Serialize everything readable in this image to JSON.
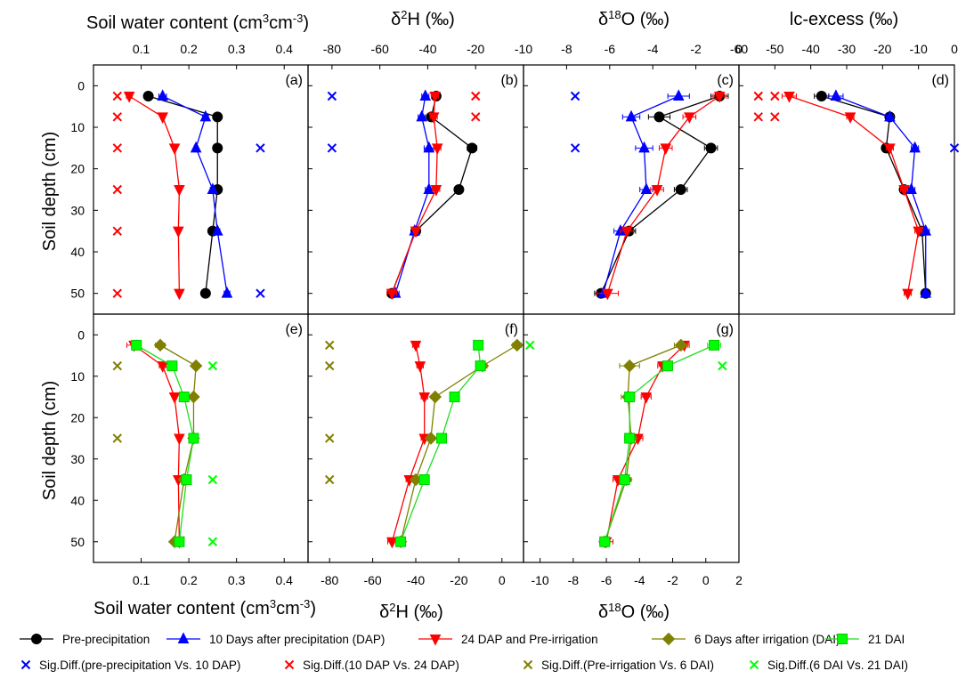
{
  "legend": [
    {
      "label": "Pre-precipitation",
      "color": "#000000",
      "marker": "circle"
    },
    {
      "label": "10 Days after precipitation (DAP)",
      "color": "#0000ff",
      "marker": "triangle-up"
    },
    {
      "label": "24 DAP and Pre-irrigation",
      "color": "#ff0000",
      "marker": "triangle-down"
    },
    {
      "label": "6 Days after irrigation (DAI)",
      "color": "#808000",
      "marker": "diamond"
    },
    {
      "label": "21 DAI",
      "color": "#00ff00",
      "marker": "square"
    }
  ],
  "sig_legend": [
    {
      "label": "Sig.Diff.(pre-precipitation Vs. 10 DAP)",
      "color": "#0000ff"
    },
    {
      "label": "Sig.Diff.(10 DAP Vs. 24 DAP)",
      "color": "#ff0000"
    },
    {
      "label": "Sig.Diff.(Pre-irrigation Vs. 6 DAI)",
      "color": "#808000"
    },
    {
      "label": "Sig.Diff.(6 DAI Vs. 21 DAI)",
      "color": "#00ff00"
    }
  ],
  "chart_data": [
    {
      "type": "line",
      "panel_label": "(a)",
      "xlabel": "Soil water content (cm3cm-3)",
      "ylabel": "Soil depth (cm)",
      "xlim": [
        0,
        0.45
      ],
      "ylim": [
        -5,
        55
      ],
      "xticks": [
        0.1,
        0.2,
        0.3,
        0.4
      ],
      "xtick_labels": [
        "0.1",
        "0.2",
        "0.3",
        "0.4"
      ],
      "yticks": [
        0,
        10,
        20,
        30,
        40,
        50
      ],
      "ytick_labels": [
        "0",
        "10",
        "20",
        "30",
        "40",
        "50"
      ],
      "series": [
        {
          "legend": 0,
          "x": [
            0.115,
            0.26,
            0.26,
            0.26,
            0.25,
            0.235
          ],
          "y": [
            2.5,
            7.5,
            15,
            25,
            35,
            50
          ],
          "err": [
            0.005,
            0.004,
            0.003,
            0.004,
            0.005,
            0.005
          ]
        },
        {
          "legend": 1,
          "x": [
            0.145,
            0.235,
            0.215,
            0.25,
            0.26,
            0.28
          ],
          "y": [
            2.5,
            7.5,
            15,
            25,
            35,
            50
          ],
          "err": [
            0.008,
            0.006,
            0.004,
            0.005,
            0.005,
            0.006
          ]
        },
        {
          "legend": 2,
          "x": [
            0.075,
            0.145,
            0.17,
            0.18,
            0.178,
            0.18
          ],
          "y": [
            2.5,
            7.5,
            15,
            25,
            35,
            50
          ],
          "err": [
            0.006,
            0.004,
            0.003,
            0.003,
            0.003,
            0.003
          ]
        }
      ],
      "sig": [
        {
          "legend": 0,
          "x": [
            0.35,
            0.35
          ],
          "y": [
            15,
            50
          ]
        },
        {
          "legend": 1,
          "x": [
            0.05,
            0.05,
            0.05,
            0.05,
            0.05,
            0.05
          ],
          "y": [
            2.5,
            7.5,
            15,
            25,
            35,
            50
          ]
        }
      ]
    },
    {
      "type": "line",
      "panel_label": "(b)",
      "xlabel": "δ2H (‰)",
      "xlim": [
        -90,
        0
      ],
      "xticks": [
        -80,
        -60,
        -40,
        -20
      ],
      "xtick_labels": [
        "-80",
        "-60",
        "-40",
        "-20"
      ],
      "yticks": [
        0,
        10,
        20,
        30,
        40,
        50
      ],
      "ylim": [
        -5,
        55
      ],
      "series": [
        {
          "legend": 0,
          "x": [
            -36.5,
            -38.5,
            -21.5,
            -27,
            -45,
            -55
          ],
          "y": [
            2.5,
            7.5,
            15,
            25,
            35,
            50
          ],
          "err": [
            1.5,
            1.5,
            2,
            1.5,
            1,
            1.5
          ]
        },
        {
          "legend": 1,
          "x": [
            -41,
            -42.5,
            -39.5,
            -39.5,
            -45.5,
            -53.5
          ],
          "y": [
            2.5,
            7.5,
            15,
            25,
            35,
            50
          ],
          "err": [
            1.5,
            1.5,
            2,
            1.5,
            1,
            1.5
          ]
        },
        {
          "legend": 2,
          "x": [
            -37,
            -37.5,
            -36,
            -36.5,
            -45,
            -55
          ],
          "y": [
            2.5,
            7.5,
            15,
            25,
            35,
            50
          ],
          "err": [
            1.5,
            1.5,
            1.5,
            1.5,
            1,
            2
          ]
        }
      ],
      "sig": [
        {
          "legend": 0,
          "x": [
            -80,
            -80
          ],
          "y": [
            2.5,
            15
          ]
        },
        {
          "legend": 1,
          "x": [
            -20,
            -20
          ],
          "y": [
            2.5,
            7.5
          ]
        }
      ]
    },
    {
      "type": "line",
      "panel_label": "(c)",
      "xlabel": "δ18O (‰)",
      "xlim": [
        -10,
        0
      ],
      "xticks": [
        -10,
        -8,
        -6,
        -4,
        -2,
        0
      ],
      "xtick_labels": [
        "-10",
        "-8",
        "-6",
        "-4",
        "-2",
        "0"
      ],
      "yticks": [
        0,
        10,
        20,
        30,
        40,
        50
      ],
      "ylim": [
        -5,
        55
      ],
      "series": [
        {
          "legend": 0,
          "x": [
            -0.9,
            -3.7,
            -1.3,
            -2.7,
            -5.1,
            -6.4
          ],
          "y": [
            2.5,
            7.5,
            15,
            25,
            35,
            50
          ],
          "err": [
            0.4,
            0.5,
            0.3,
            0.3,
            0.3,
            0.3
          ]
        },
        {
          "legend": 1,
          "x": [
            -2.8,
            -5.0,
            -4.4,
            -4.3,
            -5.5,
            -6.3
          ],
          "y": [
            2.5,
            7.5,
            15,
            25,
            35,
            50
          ],
          "err": [
            0.5,
            0.4,
            0.4,
            0.3,
            0.3,
            0.3
          ]
        },
        {
          "legend": 2,
          "x": [
            -0.9,
            -2.3,
            -3.4,
            -3.8,
            -5.2,
            -6.1
          ],
          "y": [
            2.5,
            7.5,
            15,
            25,
            35,
            50
          ],
          "err": [
            0.3,
            0.3,
            0.3,
            0.3,
            0.3,
            0.5
          ]
        }
      ],
      "sig": [
        {
          "legend": 0,
          "x": [
            -7.6,
            -7.6
          ],
          "y": [
            2.5,
            15
          ]
        },
        {
          "legend": 1,
          "x": [
            0.9,
            0.9
          ],
          "y": [
            2.5,
            7.5
          ]
        }
      ]
    },
    {
      "type": "line",
      "panel_label": "(d)",
      "xlabel": "lc-excess (‰)",
      "xlim": [
        -60,
        0
      ],
      "xticks": [
        -60,
        -50,
        -40,
        -30,
        -20,
        -10,
        0
      ],
      "xtick_labels": [
        "-60",
        "-50",
        "-40",
        "-30",
        "-20",
        "-10",
        "0"
      ],
      "yticks": [
        0,
        10,
        20,
        30,
        40,
        50
      ],
      "ylim": [
        -5,
        55
      ],
      "series": [
        {
          "legend": 0,
          "x": [
            -37,
            -18,
            -19,
            -14,
            -9,
            -8
          ],
          "y": [
            2.5,
            7.5,
            15,
            25,
            35,
            50
          ],
          "err": [
            2,
            1,
            1,
            1,
            1,
            1
          ]
        },
        {
          "legend": 1,
          "x": [
            -33,
            -18,
            -11,
            -12,
            -8,
            -8
          ],
          "y": [
            2.5,
            7.5,
            15,
            25,
            35,
            50
          ],
          "err": [
            2,
            1,
            1,
            1,
            1,
            1
          ]
        },
        {
          "legend": 2,
          "x": [
            -46,
            -29,
            -18,
            -14,
            -10,
            -13
          ],
          "y": [
            2.5,
            7.5,
            15,
            25,
            35,
            50
          ],
          "err": [
            2,
            1,
            1,
            1,
            1,
            1
          ]
        }
      ],
      "sig": [
        {
          "legend": 0,
          "x": [
            0
          ],
          "y": [
            15
          ]
        },
        {
          "legend": 1,
          "x": [
            -50,
            -50
          ],
          "y": [
            2.5,
            7.5
          ]
        }
      ]
    },
    {
      "type": "line",
      "panel_label": "(e)",
      "xlabel": "Soil water content (cm3cm-3)",
      "ylabel": "Soil depth (cm)",
      "xlim": [
        0,
        0.45
      ],
      "ylim": [
        -5,
        55
      ],
      "xticks": [
        0.1,
        0.2,
        0.3,
        0.4
      ],
      "xtick_labels": [
        "0.1",
        "0.2",
        "0.3",
        "0.4"
      ],
      "yticks": [
        0,
        10,
        20,
        30,
        40,
        50
      ],
      "ytick_labels": [
        "0",
        "10",
        "20",
        "30",
        "40",
        "50"
      ],
      "series": [
        {
          "legend": 2,
          "x": [
            0.085,
            0.145,
            0.17,
            0.18,
            0.178,
            0.18
          ],
          "y": [
            2.5,
            7.5,
            15,
            25,
            35,
            50
          ],
          "err": [
            0.015,
            0.007,
            0.004,
            0.004,
            0.004,
            0.004
          ]
        },
        {
          "legend": 3,
          "x": [
            0.14,
            0.215,
            0.21,
            0.21,
            0.19,
            0.17
          ],
          "y": [
            2.5,
            7.5,
            15,
            25,
            35,
            50
          ],
          "err": [
            0.01,
            0.007,
            0.007,
            0.005,
            0.005,
            0.005
          ]
        },
        {
          "legend": 4,
          "x": [
            0.09,
            0.165,
            0.19,
            0.21,
            0.195,
            0.18
          ],
          "y": [
            2.5,
            7.5,
            15,
            25,
            35,
            50
          ],
          "err": [
            0.01,
            0.005,
            0.005,
            0.005,
            0.005,
            0.005
          ]
        }
      ],
      "sig": [
        {
          "legend": 2,
          "x": [
            0.05,
            0.05
          ],
          "y": [
            7.5,
            25
          ]
        },
        {
          "legend": 3,
          "x": [
            0.25,
            0.25,
            0.25
          ],
          "y": [
            7.5,
            35,
            50
          ]
        }
      ]
    },
    {
      "type": "line",
      "panel_label": "(f)",
      "xlabel": "δ2H (‰)",
      "xlim": [
        -90,
        10
      ],
      "xticks": [
        -80,
        -60,
        -40,
        -20,
        0
      ],
      "xtick_labels": [
        "-80",
        "-60",
        "-40",
        "-20",
        "0"
      ],
      "yticks": [
        0,
        10,
        20,
        30,
        40,
        50
      ],
      "ylim": [
        -5,
        55
      ],
      "series": [
        {
          "legend": 2,
          "x": [
            -40,
            -38,
            -36,
            -36,
            -43,
            -51
          ],
          "y": [
            2.5,
            7.5,
            15,
            25,
            35,
            50
          ],
          "err": [
            1.5,
            1.5,
            1.5,
            1.5,
            1.5,
            2
          ]
        },
        {
          "legend": 3,
          "x": [
            7,
            -9,
            -31,
            -33,
            -40,
            -47
          ],
          "y": [
            2.5,
            7.5,
            15,
            25,
            35,
            50
          ],
          "err": [
            2,
            2,
            1.5,
            1.5,
            1.5,
            1.5
          ]
        },
        {
          "legend": 4,
          "x": [
            -11,
            -10,
            -22,
            -28,
            -36,
            -47
          ],
          "y": [
            2.5,
            7.5,
            15,
            25,
            35,
            50
          ],
          "err": [
            1.5,
            1.5,
            1.5,
            1.5,
            1.5,
            1.5
          ]
        }
      ],
      "sig": [
        {
          "legend": 2,
          "x": [
            -80,
            -80,
            -80,
            -80
          ],
          "y": [
            2.5,
            7.5,
            25,
            35
          ]
        },
        {
          "legend": 3,
          "x": [
            13
          ],
          "y": [
            2.5
          ]
        }
      ]
    },
    {
      "type": "line",
      "panel_label": "(g)",
      "xlabel": "δ18O (‰)",
      "xlim": [
        -11,
        2
      ],
      "xticks": [
        -10,
        -8,
        -6,
        -4,
        -2,
        0,
        2
      ],
      "xtick_labels": [
        "-10",
        "-8",
        "-6",
        "-4",
        "-2",
        "0",
        "2"
      ],
      "yticks": [
        0,
        10,
        20,
        30,
        40,
        50
      ],
      "ylim": [
        -5,
        55
      ],
      "series": [
        {
          "legend": 2,
          "x": [
            -1.3,
            -2.6,
            -3.6,
            -4.1,
            -5.3,
            -6.0
          ],
          "y": [
            2.5,
            7.5,
            15,
            25,
            35,
            50
          ],
          "err": [
            0.3,
            0.3,
            0.3,
            0.3,
            0.3,
            0.4
          ]
        },
        {
          "legend": 3,
          "x": [
            -1.5,
            -4.6,
            -4.7,
            -4.5,
            -4.8,
            -6.1
          ],
          "y": [
            2.5,
            7.5,
            15,
            25,
            35,
            50
          ],
          "err": [
            0.4,
            0.6,
            0.4,
            0.3,
            0.3,
            0.3
          ]
        },
        {
          "legend": 4,
          "x": [
            0.5,
            -2.3,
            -4.6,
            -4.6,
            -4.9,
            -6.1
          ],
          "y": [
            2.5,
            7.5,
            15,
            25,
            35,
            50
          ],
          "err": [
            0.4,
            0.3,
            0.3,
            0.3,
            0.3,
            0.3
          ]
        }
      ],
      "sig": [
        {
          "legend": 3,
          "x": [
            1.0
          ],
          "y": [
            7.5
          ]
        }
      ]
    }
  ]
}
